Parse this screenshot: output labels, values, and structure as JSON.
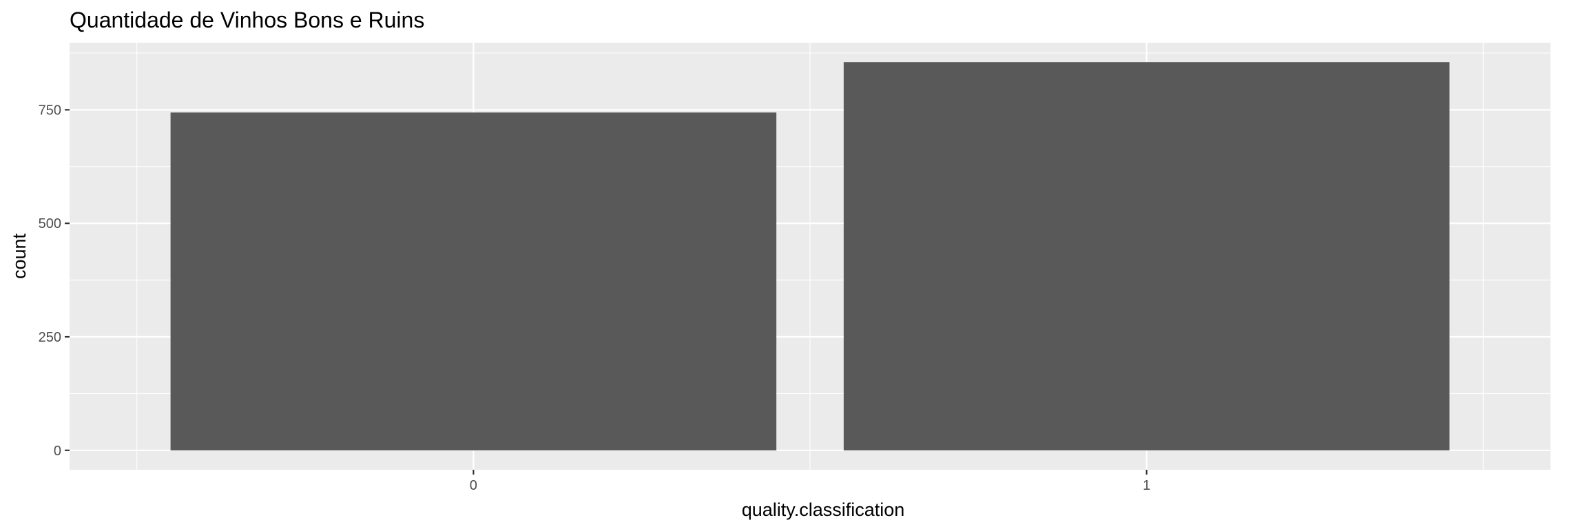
{
  "chart_data": {
    "type": "bar",
    "title": "Quantidade de Vinhos Bons e Ruins",
    "xlabel": "quality.classification",
    "ylabel": "count",
    "categories": [
      "0",
      "1"
    ],
    "values": [
      744,
      855
    ],
    "ylim": [
      -42.75,
      897.75
    ],
    "yticks": [
      0,
      250,
      500,
      750
    ],
    "ytick_labels": [
      "0",
      "250",
      "500",
      "750"
    ],
    "grid": true,
    "legend": "none",
    "colors": {
      "panel_background": "#ebebeb",
      "grid_major": "#ffffff",
      "bar_fill": "#595959",
      "tick_text": "#4d4d4d",
      "tick_mark": "#333333"
    }
  }
}
